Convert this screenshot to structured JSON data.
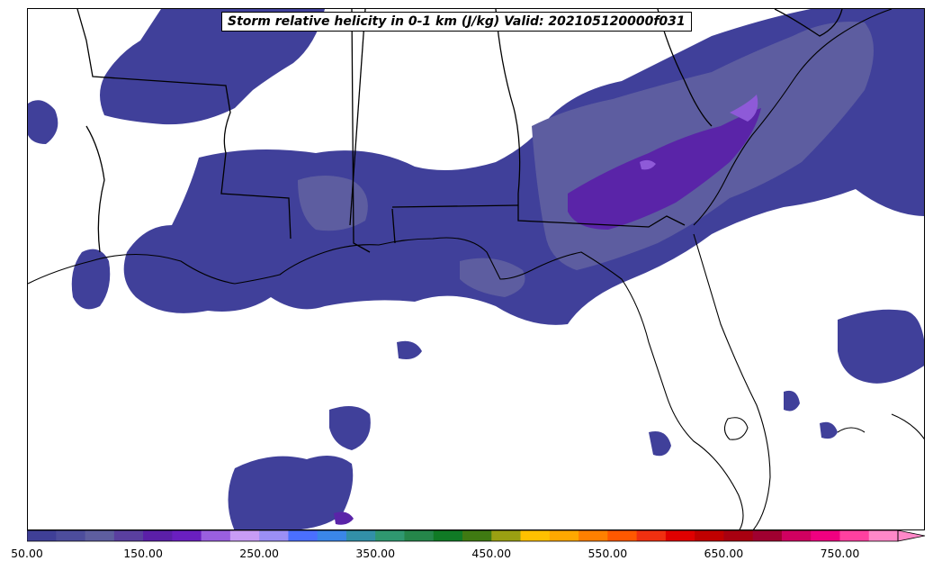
{
  "title": "Storm relative helicity in 0-1 km (J/kg) Valid: 202105120000f031",
  "colorbar": {
    "min": 50,
    "max": 800,
    "step": 25,
    "extend": "max",
    "colors": [
      "#3f3f97",
      "#4d4d9c",
      "#5e5ea0",
      "#5a3fa0",
      "#5b1fa8",
      "#6a1fc0",
      "#9a5fdf",
      "#c89cf5",
      "#9b8ff5",
      "#4a6fff",
      "#3a86e8",
      "#3290a8",
      "#2f9870",
      "#25864a",
      "#107a25",
      "#3f7a12",
      "#9aa012",
      "#ffc000",
      "#ffa800",
      "#ff8000",
      "#ff5800",
      "#f03010",
      "#e00000",
      "#c00000",
      "#a80010",
      "#a00030",
      "#d00060",
      "#f00080",
      "#ff40a0",
      "#ff88c8"
    ],
    "tick_labels": [
      "50.00",
      "150.00",
      "250.00",
      "350.00",
      "450.00",
      "550.00",
      "650.00",
      "750.00"
    ]
  }
}
